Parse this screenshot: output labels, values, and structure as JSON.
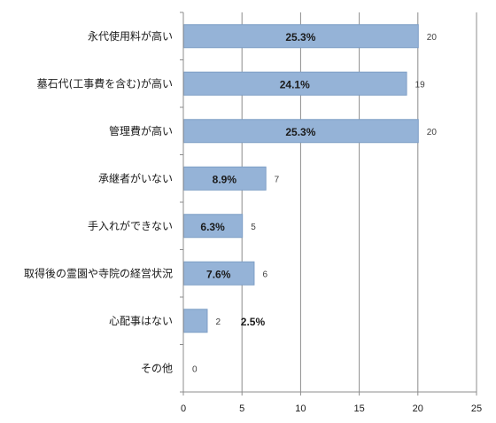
{
  "chart_data": {
    "type": "bar",
    "orientation": "horizontal",
    "title": "",
    "xlabel": "",
    "ylabel": "",
    "categories": [
      "永代使用料が高い",
      "墓石代(工事費を含む)が高い",
      "管理費が高い",
      "承継者がいない",
      "手入れができない",
      "取得後の霊園や寺院の経営状況",
      "心配事はない",
      "その他"
    ],
    "values": [
      20,
      19,
      20,
      7,
      5,
      6,
      2,
      0
    ],
    "percent_labels": [
      "25.3%",
      "24.1%",
      "25.3%",
      "8.9%",
      "6.3%",
      "7.6%",
      "2.5%",
      ""
    ],
    "count_labels": [
      "20",
      "19",
      "20",
      "7",
      "5",
      "6",
      "2",
      "0"
    ],
    "xlim": [
      0,
      25
    ],
    "x_ticks": [
      "0",
      "5",
      "10",
      "15",
      "20",
      "25"
    ],
    "grid": true,
    "legend": "none",
    "bar_color": "#95b3d7",
    "bar_edge_color": "#7f9fc6"
  }
}
